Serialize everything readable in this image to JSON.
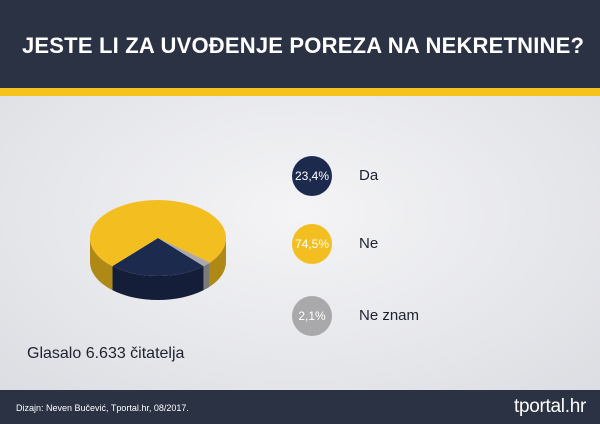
{
  "header": {
    "title": "JESTE LI ZA UVOĐENJE POREZA NA NEKRETNINE?"
  },
  "chart_data": {
    "type": "pie",
    "categories": [
      "Da",
      "Ne",
      "Ne znam"
    ],
    "values": [
      23.4,
      74.5,
      2.1
    ],
    "value_labels": [
      "23,4%",
      "74,5%",
      "2,1%"
    ],
    "colors": [
      "#1c2a4e",
      "#f3be1f",
      "#a9a9ab"
    ]
  },
  "votes": {
    "text": "Glasalo 6.633 čitatelja"
  },
  "footer": {
    "credit": "Dizajn: Neven Bučević, Tportal.hr, 08/2017.",
    "brand": "tportal.hr"
  }
}
